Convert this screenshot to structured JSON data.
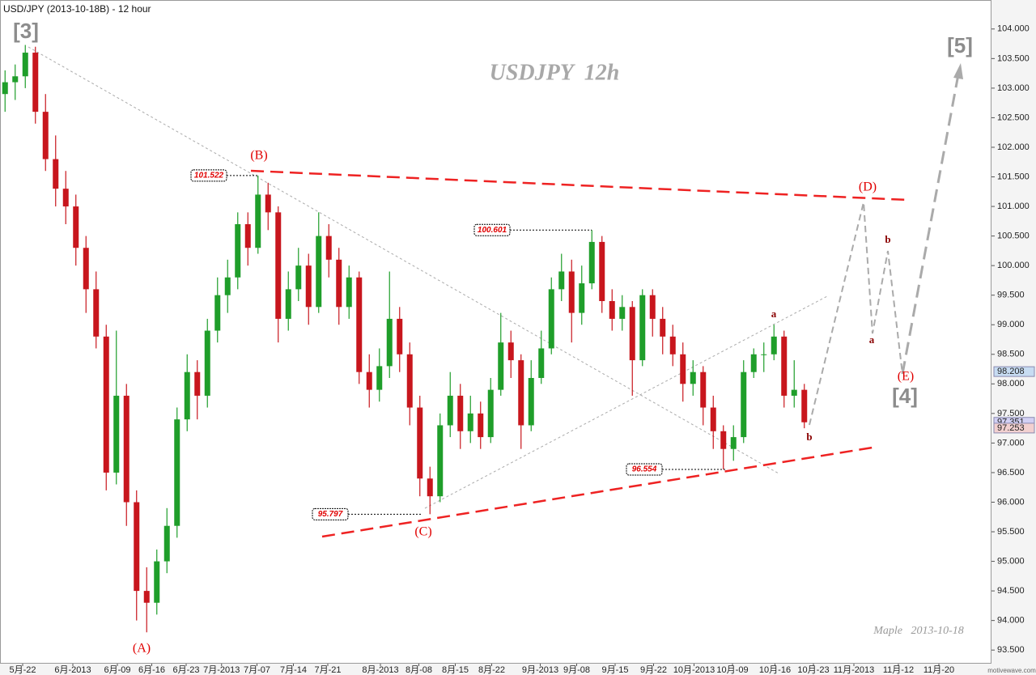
{
  "chart_data": {
    "type": "candlestick",
    "title": "USD/JPY (2013-10-18B) - 12 hour",
    "watermark": "USDJPY  12h",
    "signature": "Maple   2013-10-18",
    "footer": "motivewave.com",
    "up_color": "#1f9e2a",
    "down_color": "#c8161d",
    "open": [
      102.9,
      103.1,
      103.2,
      103.6,
      102.6,
      101.8,
      101.3,
      101.0,
      100.3,
      99.6,
      98.8,
      96.5,
      97.8,
      96.0,
      94.5,
      94.3,
      95.0,
      95.6,
      97.4,
      98.2,
      97.8,
      98.9,
      99.5,
      99.8,
      100.7,
      100.3,
      101.2,
      100.9,
      99.1,
      99.6,
      100.0,
      99.3,
      100.5,
      100.1,
      99.3,
      99.8,
      98.2,
      97.9,
      98.3,
      99.1,
      98.5,
      97.6,
      96.4,
      96.1,
      97.3,
      97.8,
      97.2,
      97.5,
      97.1,
      97.9,
      98.7,
      98.4,
      97.3,
      98.1,
      98.6,
      99.6,
      99.9,
      99.2,
      99.7,
      100.4,
      99.4,
      99.1,
      99.3,
      98.4,
      99.5,
      99.1,
      98.8,
      98.5,
      98.0,
      98.2,
      97.6,
      97.2,
      96.9,
      97.1,
      98.2,
      98.5,
      98.5,
      98.8,
      97.8,
      97.9
    ],
    "high": [
      103.3,
      103.4,
      103.73,
      103.7,
      102.9,
      102.2,
      101.6,
      101.2,
      100.5,
      99.9,
      99.0,
      98.9,
      98.0,
      96.2,
      94.9,
      95.2,
      95.9,
      97.6,
      98.5,
      98.4,
      99.1,
      99.8,
      100.1,
      100.9,
      100.9,
      101.522,
      101.4,
      101.0,
      99.9,
      100.3,
      100.2,
      100.9,
      100.7,
      100.3,
      100.0,
      99.9,
      98.5,
      98.6,
      99.9,
      99.3,
      98.7,
      97.8,
      96.6,
      97.5,
      98.2,
      98.0,
      97.8,
      97.7,
      98.1,
      99.2,
      98.9,
      98.5,
      98.4,
      98.9,
      99.8,
      100.2,
      100.1,
      100.0,
      100.601,
      100.5,
      99.6,
      99.5,
      99.4,
      99.6,
      99.6,
      99.3,
      99.0,
      98.7,
      98.4,
      98.3,
      97.8,
      97.3,
      97.3,
      98.4,
      98.6,
      98.7,
      99.0,
      98.9,
      98.4,
      98.0
    ],
    "low": [
      102.6,
      102.8,
      103.0,
      102.4,
      101.6,
      101.0,
      100.7,
      100.0,
      99.2,
      98.6,
      96.2,
      96.3,
      95.6,
      94.0,
      93.8,
      94.1,
      94.8,
      95.4,
      97.2,
      97.4,
      97.6,
      98.7,
      99.2,
      99.6,
      100.0,
      100.2,
      100.6,
      98.7,
      98.9,
      99.4,
      99.0,
      99.2,
      99.8,
      99.0,
      99.1,
      98.0,
      97.6,
      97.7,
      98.1,
      98.2,
      97.3,
      96.1,
      95.797,
      96.0,
      97.1,
      96.9,
      97.0,
      96.9,
      97.0,
      97.8,
      98.1,
      96.9,
      97.2,
      98.0,
      98.5,
      99.4,
      98.7,
      99.0,
      99.6,
      99.2,
      98.9,
      98.9,
      97.8,
      98.3,
      98.8,
      98.5,
      98.3,
      97.7,
      97.8,
      97.3,
      96.9,
      96.554,
      96.7,
      97.0,
      98.1,
      98.2,
      98.4,
      97.6,
      97.6,
      97.25
    ],
    "close": [
      103.1,
      103.2,
      103.6,
      102.6,
      101.8,
      101.3,
      101.0,
      100.3,
      99.6,
      98.8,
      96.5,
      97.8,
      96.0,
      94.5,
      94.3,
      95.0,
      95.6,
      97.4,
      98.2,
      97.8,
      98.9,
      99.5,
      99.8,
      100.7,
      100.3,
      101.2,
      100.9,
      99.1,
      99.6,
      100.0,
      99.3,
      100.5,
      100.1,
      99.3,
      99.8,
      98.2,
      97.9,
      98.3,
      99.1,
      98.5,
      97.6,
      96.4,
      96.1,
      97.3,
      97.8,
      97.2,
      97.5,
      97.1,
      97.9,
      98.7,
      98.4,
      97.3,
      98.1,
      98.6,
      99.6,
      99.9,
      99.2,
      99.7,
      100.4,
      99.4,
      99.1,
      99.3,
      98.4,
      99.5,
      99.1,
      98.8,
      98.5,
      98.0,
      98.2,
      97.6,
      97.2,
      96.9,
      97.1,
      98.2,
      98.5,
      98.5,
      98.8,
      97.8,
      97.9,
      97.351
    ],
    "xlim": [
      0,
      98
    ],
    "xticks": [
      {
        "value": 2.24,
        "label": "5月-22"
      },
      {
        "value": 7.2,
        "label": "6月-2013"
      },
      {
        "value": 11.6,
        "label": "6月-09"
      },
      {
        "value": 15.0,
        "label": "6月-16"
      },
      {
        "value": 18.4,
        "label": "6月-23"
      },
      {
        "value": 21.9,
        "label": "7月-2013"
      },
      {
        "value": 25.4,
        "label": "7月-07"
      },
      {
        "value": 29.0,
        "label": "7月-14"
      },
      {
        "value": 32.4,
        "label": "7月-21"
      },
      {
        "value": 37.6,
        "label": "8月-2013"
      },
      {
        "value": 41.4,
        "label": "8月-08"
      },
      {
        "value": 45.0,
        "label": "8月-15"
      },
      {
        "value": 48.6,
        "label": "8月-22"
      },
      {
        "value": 53.4,
        "label": "9月-2013"
      },
      {
        "value": 57.0,
        "label": "9月-08"
      },
      {
        "value": 60.8,
        "label": "9月-15"
      },
      {
        "value": 64.6,
        "label": "9月-22"
      },
      {
        "value": 68.6,
        "label": "10月-2013"
      },
      {
        "value": 72.4,
        "label": "10月-09"
      },
      {
        "value": 76.6,
        "label": "10月-16"
      },
      {
        "value": 80.4,
        "label": "10月-23"
      },
      {
        "value": 84.4,
        "label": "11月-2013"
      },
      {
        "value": 88.8,
        "label": "11月-12"
      },
      {
        "value": 92.8,
        "label": "11月-20"
      }
    ],
    "ylim": [
      93.27,
      104.49
    ],
    "yticks": [
      {
        "value": 93.5,
        "label": "93.500"
      },
      {
        "value": 94,
        "label": "94.000"
      },
      {
        "value": 94.5,
        "label": "94.500"
      },
      {
        "value": 95,
        "label": "95.000"
      },
      {
        "value": 95.5,
        "label": "95.500"
      },
      {
        "value": 96,
        "label": "96.000"
      },
      {
        "value": 96.5,
        "label": "96.500"
      },
      {
        "value": 97,
        "label": "97.000"
      },
      {
        "value": 97.5,
        "label": "97.500"
      },
      {
        "value": 98,
        "label": "98.000"
      },
      {
        "value": 98.5,
        "label": "98.500"
      },
      {
        "value": 99,
        "label": "99.000"
      },
      {
        "value": 99.5,
        "label": "99.500"
      },
      {
        "value": 100,
        "label": "100.000"
      },
      {
        "value": 100.5,
        "label": "100.500"
      },
      {
        "value": 101,
        "label": "101.000"
      },
      {
        "value": 101.5,
        "label": "101.500"
      },
      {
        "value": 102,
        "label": "102.000"
      },
      {
        "value": 102.5,
        "label": "102.500"
      },
      {
        "value": 103,
        "label": "103.000"
      },
      {
        "value": 103.5,
        "label": "103.500"
      },
      {
        "value": 104,
        "label": "104.000"
      }
    ],
    "last_prices": [
      {
        "value": 98.208,
        "color": "#c7dcf2"
      },
      {
        "value": 97.351,
        "color": "#d2d0f4"
      },
      {
        "value": 97.253,
        "color": "#f2d0d0"
      }
    ],
    "price_marks": [
      101.522,
      100.601,
      95.797,
      96.554
    ],
    "wave_labels": [
      "[3]",
      "(A)",
      "(B)",
      "(C)",
      "(D)",
      "(E)",
      "[4]",
      "[5]",
      "a",
      "b",
      "a",
      "b"
    ]
  }
}
